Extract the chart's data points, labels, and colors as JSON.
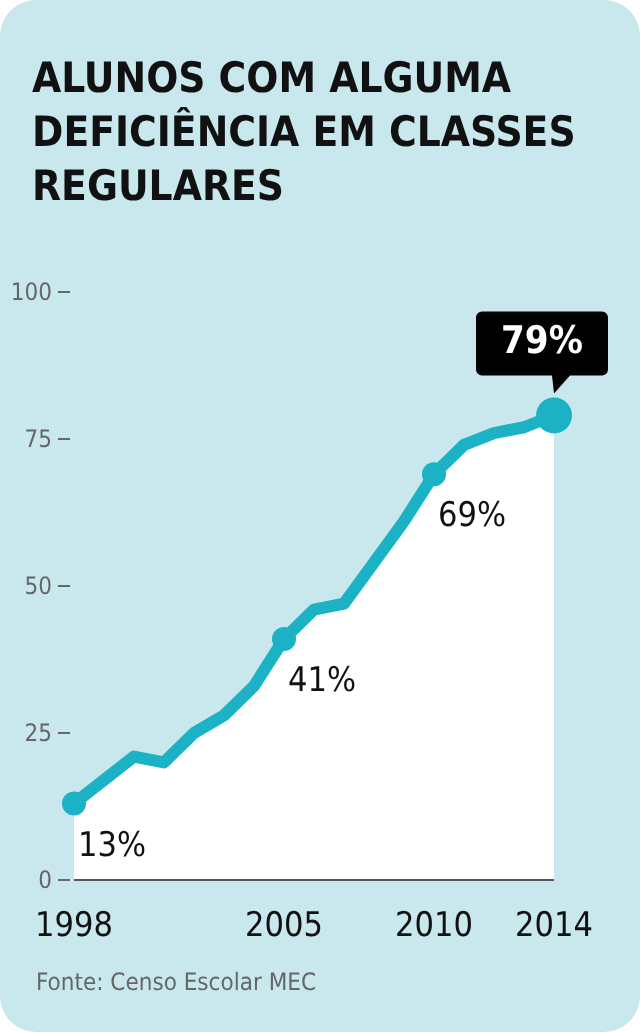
{
  "chart_data": {
    "type": "area",
    "title": "ALUNOS COM ALGUMA DEFICIÊNCIA EM CLASSES REGULARES",
    "x": [
      1998,
      1999,
      2000,
      2001,
      2002,
      2003,
      2004,
      2005,
      2006,
      2007,
      2008,
      2009,
      2010,
      2011,
      2012,
      2013,
      2014
    ],
    "series": [
      {
        "color": "#1ab2c4",
        "values": [
          13,
          17,
          21,
          20,
          25,
          28,
          33,
          41,
          46,
          47,
          54,
          61,
          69,
          74,
          76,
          77,
          79
        ],
        "value_labels": [
          "13%",
          null,
          null,
          null,
          null,
          null,
          null,
          "41%",
          null,
          null,
          null,
          null,
          "69%",
          null,
          null,
          null,
          "79%"
        ]
      }
    ],
    "xlim": [
      1998,
      2014
    ],
    "xticks": [
      1998,
      2005,
      2010,
      2014
    ],
    "ylim": [
      0,
      100
    ],
    "yticks": [
      0,
      25,
      50,
      75,
      100
    ],
    "grid": false,
    "annotations": [
      "Fonte: Censo Escolar MEC"
    ]
  }
}
